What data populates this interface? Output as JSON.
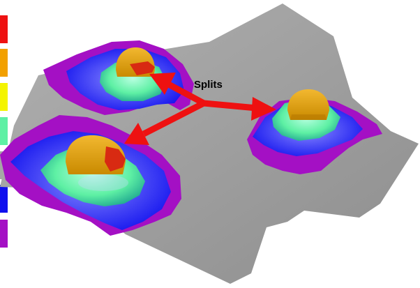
{
  "annotation": {
    "label": "Splits"
  },
  "legend": {
    "swatches": [
      {
        "name": "red",
        "color": "#ee1111"
      },
      {
        "name": "orange",
        "color": "#f2a000"
      },
      {
        "name": "yellow",
        "color": "#f4f400"
      },
      {
        "name": "mint",
        "color": "#5ef0a4"
      },
      {
        "name": "gray",
        "color": "#a6a6a6"
      },
      {
        "name": "blue",
        "color": "#1010ee"
      },
      {
        "name": "purple",
        "color": "#a410c4"
      }
    ]
  },
  "colors": {
    "surface": "#9a9a9a",
    "arrow": "#ee1111",
    "background": "#ffffff"
  }
}
